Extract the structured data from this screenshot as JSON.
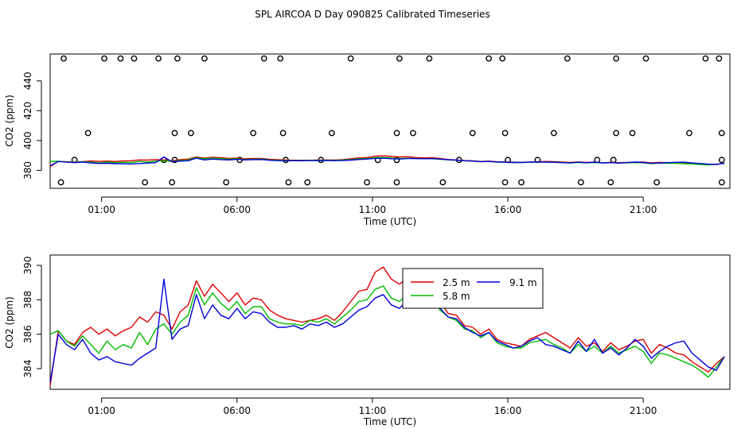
{
  "chart_data": [
    {
      "type": "scatter+line",
      "title": "SPL AIRCOA D  Day 090825  Calibrated Timeseries",
      "xlabel": "Time (UTC)",
      "ylabel": "CO2 (ppm)",
      "xlim": [
        -0.9,
        24.2
      ],
      "ylim": [
        368,
        458
      ],
      "x_ticks": [
        1,
        6,
        11,
        16,
        21
      ],
      "x_tick_labels": [
        "01:00",
        "06:00",
        "11:00",
        "16:00",
        "21:00"
      ],
      "y_ticks": [
        380,
        400,
        420,
        440
      ],
      "y_tick_labels": [
        "380",
        "400",
        "420",
        "440"
      ],
      "points_x": [
        -0.4,
        1.1,
        1.7,
        2.2,
        3.1,
        3.8,
        4.8,
        7.0,
        7.6,
        10.2,
        12.0,
        13.1,
        15.3,
        15.8,
        18.2,
        20.0,
        21.1,
        23.3,
        23.8,
        0.5,
        3.7,
        4.3,
        6.6,
        7.7,
        9.5,
        11.9,
        12.5,
        14.7,
        15.9,
        17.7,
        20.0,
        20.6,
        22.7,
        23.9,
        0.0,
        3.3,
        3.7,
        6.1,
        7.8,
        9.1,
        11.2,
        11.9,
        14.2,
        16.0,
        17.1,
        19.3,
        19.9,
        23.9,
        -0.5,
        2.6,
        3.6,
        5.6,
        7.9,
        8.6,
        10.8,
        11.9,
        13.6,
        15.9,
        16.5,
        18.7,
        19.8,
        21.5,
        23.9
      ],
      "points_y": [
        455,
        455,
        455,
        455,
        455,
        455,
        455,
        455,
        455,
        455,
        455,
        455,
        455,
        455,
        455,
        455,
        455,
        455,
        455,
        405,
        405,
        405,
        405,
        405,
        405,
        405,
        405,
        405,
        405,
        405,
        405,
        405,
        405,
        405,
        387,
        387,
        387,
        387,
        387,
        387,
        387,
        387,
        387,
        387,
        387,
        387,
        387,
        387,
        372,
        372,
        372,
        372,
        372,
        372,
        372,
        372,
        372,
        372,
        372,
        372,
        372,
        372,
        372
      ],
      "x": [
        -0.9,
        -0.6,
        -0.3,
        0.0,
        0.3,
        0.6,
        0.9,
        1.2,
        1.5,
        1.8,
        2.1,
        2.4,
        2.7,
        3.0,
        3.3,
        3.6,
        3.9,
        4.2,
        4.5,
        4.8,
        5.1,
        5.4,
        5.7,
        6.0,
        6.3,
        6.6,
        6.9,
        7.2,
        7.5,
        7.8,
        8.1,
        8.4,
        8.7,
        9.0,
        9.3,
        9.6,
        9.9,
        10.2,
        10.5,
        10.8,
        11.1,
        11.4,
        11.7,
        12.0,
        12.3,
        12.6,
        12.9,
        13.2,
        13.5,
        13.8,
        14.1,
        14.4,
        14.7,
        15.0,
        15.3,
        15.6,
        15.9,
        16.2,
        16.5,
        16.8,
        17.1,
        17.4,
        17.7,
        18.0,
        18.3,
        18.6,
        18.9,
        19.2,
        19.5,
        19.8,
        20.1,
        20.4,
        20.7,
        21.0,
        21.3,
        21.6,
        21.9,
        22.2,
        22.5,
        22.8,
        23.1,
        23.4,
        23.7,
        24.0
      ],
      "series": [
        {
          "name": "2.5 m",
          "color": "#dd0000",
          "values": [
            382.5,
            386.0,
            385.8,
            385.6,
            385.9,
            386.3,
            386.0,
            386.2,
            386.0,
            386.3,
            386.5,
            387.0,
            386.9,
            387.2,
            387.0,
            386.4,
            387.2,
            387.6,
            389.0,
            388.3,
            388.8,
            388.5,
            388.0,
            388.3,
            387.8,
            388.0,
            388.0,
            387.5,
            387.2,
            387.0,
            386.8,
            386.8,
            386.8,
            386.9,
            387.0,
            386.9,
            387.2,
            387.8,
            388.4,
            388.6,
            389.5,
            389.8,
            389.3,
            389.0,
            389.2,
            388.6,
            388.4,
            388.5,
            388.0,
            387.3,
            387.0,
            386.6,
            386.4,
            386.0,
            386.2,
            385.8,
            385.6,
            385.5,
            385.4,
            385.6,
            385.8,
            386.0,
            385.9,
            385.6,
            385.3,
            385.7,
            385.4,
            385.5,
            385.1,
            385.4,
            385.2,
            385.3,
            385.5,
            385.6,
            385.0,
            385.3,
            385.2,
            385.0,
            384.8,
            384.5,
            384.2,
            383.8,
            384.2,
            384.7
          ]
        },
        {
          "name": "5.8 m",
          "color": "#00bb00",
          "values": [
            386.0,
            386.1,
            385.7,
            385.4,
            385.8,
            385.5,
            385.0,
            385.6,
            385.2,
            385.4,
            385.3,
            386.0,
            385.5,
            386.2,
            386.5,
            386.0,
            386.6,
            387.0,
            388.6,
            387.8,
            388.3,
            387.9,
            387.5,
            387.8,
            387.3,
            387.5,
            387.6,
            387.0,
            386.8,
            386.6,
            386.6,
            386.6,
            386.8,
            386.7,
            386.8,
            386.7,
            386.9,
            387.3,
            387.8,
            388.0,
            388.5,
            388.7,
            388.2,
            388.0,
            388.2,
            387.9,
            387.8,
            387.8,
            387.5,
            387.0,
            386.8,
            386.4,
            386.2,
            385.8,
            386.0,
            385.6,
            385.4,
            385.3,
            385.3,
            385.4,
            385.5,
            385.6,
            385.5,
            385.3,
            385.0,
            385.3,
            385.1,
            385.2,
            385.0,
            385.2,
            385.0,
            385.1,
            385.2,
            385.1,
            384.5,
            384.9,
            384.8,
            384.7,
            384.5,
            384.3,
            384.0,
            383.6,
            384.1,
            384.7
          ]
        },
        {
          "name": "9.1 m",
          "color": "#0000dd",
          "values": [
            383.0,
            386.0,
            385.5,
            385.2,
            385.6,
            385.0,
            384.6,
            384.8,
            384.5,
            384.4,
            384.3,
            384.6,
            384.9,
            385.2,
            389.0,
            385.8,
            386.2,
            386.5,
            388.2,
            387.0,
            387.6,
            387.2,
            387.0,
            387.4,
            387.0,
            387.2,
            387.3,
            386.8,
            386.5,
            386.4,
            386.5,
            386.4,
            386.6,
            386.5,
            386.6,
            386.5,
            386.6,
            386.9,
            387.3,
            387.6,
            388.0,
            388.2,
            387.8,
            387.6,
            387.9,
            387.9,
            387.8,
            387.9,
            387.6,
            387.1,
            386.9,
            386.5,
            386.2,
            385.9,
            386.0,
            385.7,
            385.5,
            385.3,
            385.3,
            385.5,
            385.7,
            385.5,
            385.4,
            385.2,
            385.0,
            385.5,
            385.1,
            385.6,
            385.0,
            385.2,
            384.9,
            385.2,
            385.6,
            385.3,
            384.7,
            385.0,
            385.2,
            385.4,
            385.5,
            385.0,
            384.6,
            384.2,
            384.0,
            384.7
          ]
        }
      ]
    },
    {
      "type": "line",
      "title": "",
      "xlabel": "Time (UTC)",
      "ylabel": "CO2 (ppm)",
      "xlim": [
        -0.9,
        24.2
      ],
      "ylim": [
        382.8,
        390.6
      ],
      "x_ticks": [
        1,
        6,
        11,
        16,
        21
      ],
      "x_tick_labels": [
        "01:00",
        "06:00",
        "11:00",
        "16:00",
        "21:00"
      ],
      "y_ticks": [
        384,
        386,
        388,
        390
      ],
      "y_tick_labels": [
        "384",
        "386",
        "388",
        "390"
      ],
      "legend": {
        "position": "top-right",
        "entries": [
          "2.5 m",
          "5.8 m",
          "9.1 m"
        ]
      },
      "x": [
        -0.9,
        -0.6,
        -0.3,
        0.0,
        0.3,
        0.6,
        0.9,
        1.2,
        1.5,
        1.8,
        2.1,
        2.4,
        2.7,
        3.0,
        3.3,
        3.6,
        3.9,
        4.2,
        4.5,
        4.8,
        5.1,
        5.4,
        5.7,
        6.0,
        6.3,
        6.6,
        6.9,
        7.2,
        7.5,
        7.8,
        8.1,
        8.4,
        8.7,
        9.0,
        9.3,
        9.6,
        9.9,
        10.2,
        10.5,
        10.8,
        11.1,
        11.4,
        11.7,
        12.0,
        12.3,
        12.6,
        12.9,
        13.2,
        13.5,
        13.8,
        14.1,
        14.4,
        14.7,
        15.0,
        15.3,
        15.6,
        15.9,
        16.2,
        16.5,
        16.8,
        17.1,
        17.4,
        17.7,
        18.0,
        18.3,
        18.6,
        18.9,
        19.2,
        19.5,
        19.8,
        20.1,
        20.4,
        20.7,
        21.0,
        21.3,
        21.6,
        21.9,
        22.2,
        22.5,
        22.8,
        23.1,
        23.4,
        23.7,
        24.0
      ],
      "series": [
        {
          "name": "2.5 m",
          "color": "#dd0000",
          "values": [
            383.0,
            386.2,
            385.6,
            385.4,
            386.1,
            386.4,
            386.0,
            386.3,
            385.9,
            386.2,
            386.4,
            387.0,
            386.7,
            387.3,
            387.1,
            386.3,
            387.3,
            387.7,
            389.1,
            388.2,
            388.9,
            388.4,
            387.9,
            388.4,
            387.7,
            388.1,
            388.0,
            387.4,
            387.1,
            386.9,
            386.8,
            386.7,
            386.8,
            386.9,
            387.1,
            386.8,
            387.3,
            387.9,
            388.5,
            388.6,
            389.6,
            389.9,
            389.2,
            388.9,
            389.3,
            388.6,
            388.3,
            388.6,
            387.9,
            387.2,
            387.1,
            386.5,
            386.4,
            386.0,
            386.3,
            385.7,
            385.5,
            385.4,
            385.3,
            385.7,
            385.9,
            386.1,
            385.8,
            385.5,
            385.2,
            385.8,
            385.3,
            385.5,
            385.0,
            385.5,
            385.1,
            385.3,
            385.6,
            385.7,
            384.9,
            385.4,
            385.2,
            384.9,
            384.8,
            384.4,
            384.1,
            383.8,
            384.3,
            384.7
          ]
        },
        {
          "name": "5.8 m",
          "color": "#00bb00",
          "values": [
            386.0,
            386.2,
            385.6,
            385.3,
            385.9,
            385.4,
            384.9,
            385.6,
            385.1,
            385.4,
            385.2,
            386.1,
            385.4,
            386.3,
            386.6,
            386.0,
            386.7,
            387.1,
            388.7,
            387.7,
            388.4,
            387.8,
            387.4,
            387.9,
            387.2,
            387.6,
            387.6,
            386.9,
            386.7,
            386.6,
            386.6,
            386.5,
            386.8,
            386.7,
            386.9,
            386.6,
            387.0,
            387.4,
            387.9,
            388.0,
            388.6,
            388.8,
            388.1,
            387.9,
            388.3,
            387.9,
            387.7,
            387.9,
            387.4,
            387.0,
            386.8,
            386.3,
            386.2,
            385.8,
            386.1,
            385.5,
            385.3,
            385.2,
            385.2,
            385.5,
            385.6,
            385.7,
            385.4,
            385.2,
            384.9,
            385.4,
            385.0,
            385.3,
            384.9,
            385.3,
            384.9,
            385.1,
            385.3,
            385.0,
            384.3,
            384.9,
            384.8,
            384.6,
            384.4,
            384.2,
            383.9,
            383.5,
            384.1,
            384.7
          ]
        },
        {
          "name": "9.1 m",
          "color": "#0000dd",
          "values": [
            383.2,
            386.0,
            385.4,
            385.1,
            385.7,
            384.9,
            384.5,
            384.7,
            384.4,
            384.3,
            384.2,
            384.6,
            384.9,
            385.2,
            389.2,
            385.7,
            386.3,
            386.5,
            388.3,
            386.9,
            387.7,
            387.1,
            386.9,
            387.5,
            386.9,
            387.3,
            387.2,
            386.7,
            386.4,
            386.4,
            386.5,
            386.3,
            386.6,
            386.5,
            386.7,
            386.4,
            386.6,
            387.0,
            387.4,
            387.6,
            388.1,
            388.3,
            387.7,
            387.5,
            388.0,
            387.9,
            387.8,
            388.0,
            387.5,
            387.0,
            386.9,
            386.4,
            386.1,
            385.9,
            386.1,
            385.6,
            385.4,
            385.2,
            385.3,
            385.6,
            385.8,
            385.4,
            385.3,
            385.1,
            384.9,
            385.6,
            385.0,
            385.7,
            384.9,
            385.2,
            384.8,
            385.2,
            385.7,
            385.3,
            384.6,
            385.0,
            385.3,
            385.5,
            385.6,
            384.9,
            384.5,
            384.1,
            383.9,
            384.7
          ]
        }
      ]
    }
  ]
}
